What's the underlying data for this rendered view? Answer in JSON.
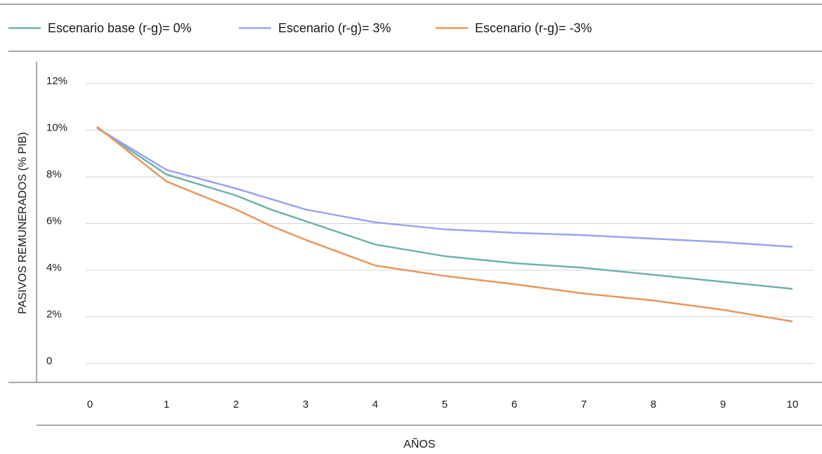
{
  "chart_data": {
    "type": "line",
    "x": [
      0,
      1,
      2,
      3,
      4,
      5,
      6,
      7,
      8,
      9,
      10
    ],
    "xlabel": "AÑOS",
    "ylabel": "PASIVOS REMUNERADOS (% PIB)",
    "ylim": [
      0,
      12
    ],
    "xlim": [
      0,
      10
    ],
    "yticks": [
      "0",
      "2%",
      "4%",
      "6%",
      "8%",
      "10%",
      "12%"
    ],
    "xticks": [
      "0",
      "1",
      "2",
      "3",
      "4",
      "5",
      "6",
      "7",
      "8",
      "9",
      "10"
    ],
    "grid": "horizontal",
    "legend_position": "top",
    "series": [
      {
        "name": "Escenario base (r-g)= 0%",
        "color": "#6fb1ad",
        "points": [
          [
            0,
            10.1
          ],
          [
            1,
            8.1
          ],
          [
            2,
            7.2
          ],
          [
            2.5,
            6.6
          ],
          [
            3,
            6.1
          ],
          [
            4,
            5.1
          ],
          [
            5,
            4.6
          ],
          [
            6,
            4.3
          ],
          [
            7,
            4.1
          ],
          [
            8,
            3.8
          ],
          [
            9,
            3.5
          ],
          [
            10,
            3.2
          ]
        ]
      },
      {
        "name": "Escenario (r-g)= 3%",
        "color": "#9aa3f2",
        "points": [
          [
            0,
            10.1
          ],
          [
            1,
            8.3
          ],
          [
            2,
            7.5
          ],
          [
            3,
            6.6
          ],
          [
            4,
            6.05
          ],
          [
            5,
            5.75
          ],
          [
            6,
            5.6
          ],
          [
            7,
            5.5
          ],
          [
            8,
            5.35
          ],
          [
            9,
            5.2
          ],
          [
            10,
            5.0
          ]
        ]
      },
      {
        "name": "Escenario (r-g)= -3%",
        "color": "#e8965e",
        "points": [
          [
            0,
            10.15
          ],
          [
            1,
            7.8
          ],
          [
            2,
            6.6
          ],
          [
            2.5,
            5.9
          ],
          [
            3,
            5.3
          ],
          [
            4,
            4.2
          ],
          [
            5,
            3.75
          ],
          [
            6,
            3.4
          ],
          [
            7,
            3.0
          ],
          [
            8,
            2.7
          ],
          [
            9,
            2.3
          ],
          [
            10,
            1.8
          ]
        ]
      }
    ]
  }
}
